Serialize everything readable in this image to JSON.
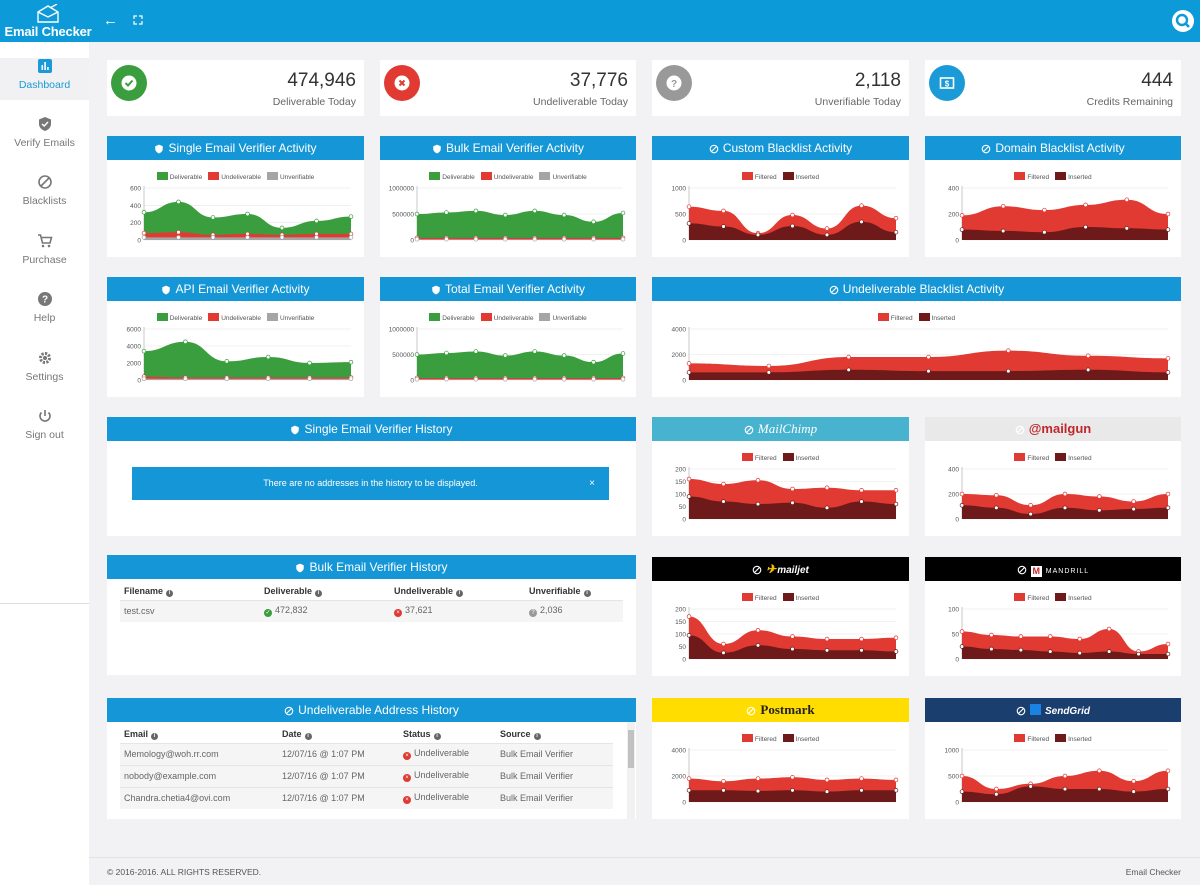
{
  "app": {
    "title": "Email Checker"
  },
  "nav": [
    {
      "label": "Dashboard",
      "icon": "bar-chart-icon"
    },
    {
      "label": "Verify Emails",
      "icon": "shield-icon"
    },
    {
      "label": "Blacklists",
      "icon": "ban-icon"
    },
    {
      "label": "Purchase",
      "icon": "cart-icon"
    },
    {
      "label": "Help",
      "icon": "question-icon"
    },
    {
      "label": "Settings",
      "icon": "gear-icon"
    },
    {
      "label": "Sign out",
      "icon": "power-icon"
    }
  ],
  "stats": [
    {
      "value": "474,946",
      "caption": "Deliverable Today",
      "color": "#3a9e3e"
    },
    {
      "value": "37,776",
      "caption": "Undeliverable Today",
      "color": "#e03a33"
    },
    {
      "value": "2,118",
      "caption": "Unverifiable Today",
      "color": "#999999"
    },
    {
      "value": "444",
      "caption": "Credits Remaining",
      "color": "#1a9ad6"
    }
  ],
  "colors": {
    "deliverable": "#3a9e3e",
    "undeliverable": "#e03a33",
    "unverifiable": "#a5a5a5",
    "filtered": "#e03a33",
    "inserted": "#6e1a1a",
    "header": "#1596d6"
  },
  "legends": {
    "deliverable": "Deliverable",
    "undeliverable": "Undeliverable",
    "unverifiable": "Unverifiable",
    "filtered": "Filtered",
    "inserted": "Inserted"
  },
  "panels": {
    "single": "Single Email Verifier Activity",
    "bulk": "Bulk Email Verifier Activity",
    "custom_bl": "Custom Blacklist Activity",
    "domain_bl": "Domain Blacklist Activity",
    "api": "API Email Verifier Activity",
    "total": "Total Email Verifier Activity",
    "undeliv_bl": "Undeliverable Blacklist Activity",
    "single_hist": "Single Email Verifier History",
    "bulk_hist": "Bulk Email Verifier History",
    "undeliv_hist": "Undeliverable Address History"
  },
  "brands": {
    "mailchimp": "MailChimp",
    "mailgun": "@mailgun",
    "mailjet": "mailjet",
    "mandrill": "MANDRILL",
    "postmark": "Postmark",
    "sendgrid": "SendGrid"
  },
  "single_history": {
    "empty_message": "There are no addresses in the history to be displayed.",
    "close": "×"
  },
  "bulk_history": {
    "columns": [
      "Filename",
      "Deliverable",
      "Undeliverable",
      "Unverifiable"
    ],
    "rows": [
      {
        "filename": "test.csv",
        "deliverable": "472,832",
        "undeliverable": "37,621",
        "unverifiable": "2,036"
      }
    ]
  },
  "undeliverable_history": {
    "columns": [
      "Email",
      "Date",
      "Status",
      "Source"
    ],
    "rows": [
      {
        "email": "Memology@woh.rr.com",
        "date": "12/07/16 @ 1:07 PM",
        "status": "Undeliverable",
        "source": "Bulk Email Verifier"
      },
      {
        "email": "nobody@example.com",
        "date": "12/07/16 @ 1:07 PM",
        "status": "Undeliverable",
        "source": "Bulk Email Verifier"
      },
      {
        "email": "Chandra.chetia4@ovi.com",
        "date": "12/07/16 @ 1:07 PM",
        "status": "Undeliverable",
        "source": "Bulk Email Verifier"
      }
    ]
  },
  "footer": {
    "copyright": "© 2016-2016. ALL RIGHTS RESERVED.",
    "brand": "Email Checker"
  },
  "chart_data": [
    {
      "id": "single",
      "type": "area",
      "title": "Single Email Verifier Activity",
      "legend": [
        "Deliverable",
        "Undeliverable",
        "Unverifiable"
      ],
      "yticks": [
        "600",
        "400",
        "200",
        "0"
      ],
      "ylim": [
        0,
        600
      ],
      "series": [
        {
          "name": "Deliverable",
          "values": [
            320,
            440,
            260,
            300,
            140,
            220,
            270
          ]
        },
        {
          "name": "Undeliverable",
          "values": [
            80,
            90,
            60,
            70,
            60,
            70,
            70
          ]
        },
        {
          "name": "Unverifiable",
          "values": [
            30,
            30,
            30,
            30,
            30,
            30,
            30
          ]
        }
      ]
    },
    {
      "id": "bulk",
      "type": "area",
      "title": "Bulk Email Verifier Activity",
      "legend": [
        "Deliverable",
        "Undeliverable",
        "Unverifiable"
      ],
      "yticks": [
        "1000000",
        "500000",
        "0"
      ],
      "ylim": [
        0,
        1000000
      ],
      "series": [
        {
          "name": "Deliverable",
          "values": [
            500000,
            530000,
            560000,
            480000,
            560000,
            480000,
            350000,
            520000
          ]
        },
        {
          "name": "Undeliverable",
          "values": [
            40000,
            40000,
            40000,
            40000,
            40000,
            40000,
            40000,
            40000
          ]
        },
        {
          "name": "Unverifiable",
          "values": [
            15000,
            15000,
            15000,
            15000,
            15000,
            15000,
            15000,
            15000
          ]
        }
      ]
    },
    {
      "id": "custom",
      "type": "area",
      "title": "Custom Blacklist Activity",
      "legend": [
        "Filtered",
        "Inserted"
      ],
      "yticks": [
        "1000",
        "500",
        "0"
      ],
      "ylim": [
        0,
        1000
      ],
      "series": [
        {
          "name": "Filtered",
          "values": [
            640,
            560,
            130,
            480,
            220,
            660,
            420
          ]
        },
        {
          "name": "Inserted",
          "values": [
            320,
            260,
            100,
            270,
            100,
            350,
            150
          ]
        }
      ]
    },
    {
      "id": "domain",
      "type": "area",
      "title": "Domain Blacklist Activity",
      "legend": [
        "Filtered",
        "Inserted"
      ],
      "yticks": [
        "400",
        "200",
        "0"
      ],
      "ylim": [
        0,
        400
      ],
      "series": [
        {
          "name": "Filtered",
          "values": [
            190,
            260,
            230,
            270,
            310,
            200
          ]
        },
        {
          "name": "Inserted",
          "values": [
            80,
            70,
            60,
            100,
            90,
            80
          ]
        }
      ]
    },
    {
      "id": "api",
      "type": "area",
      "title": "API Email Verifier Activity",
      "legend": [
        "Deliverable",
        "Undeliverable",
        "Unverifiable"
      ],
      "yticks": [
        "6000",
        "4000",
        "2000",
        "0"
      ],
      "ylim": [
        0,
        6000
      ],
      "series": [
        {
          "name": "Deliverable",
          "values": [
            3400,
            4500,
            2200,
            2700,
            2000,
            2100
          ]
        },
        {
          "name": "Undeliverable",
          "values": [
            400,
            300,
            300,
            300,
            300,
            300
          ]
        },
        {
          "name": "Unverifiable",
          "values": [
            150,
            150,
            150,
            150,
            150,
            150
          ]
        }
      ]
    },
    {
      "id": "total",
      "type": "area",
      "title": "Total Email Verifier Activity",
      "legend": [
        "Deliverable",
        "Undeliverable",
        "Unverifiable"
      ],
      "yticks": [
        "1000000",
        "500000",
        "0"
      ],
      "ylim": [
        0,
        1000000
      ],
      "series": [
        {
          "name": "Deliverable",
          "values": [
            500000,
            530000,
            560000,
            480000,
            560000,
            480000,
            350000,
            520000
          ]
        },
        {
          "name": "Undeliverable",
          "values": [
            40000,
            40000,
            40000,
            40000,
            40000,
            40000,
            40000,
            40000
          ]
        },
        {
          "name": "Unverifiable",
          "values": [
            15000,
            15000,
            15000,
            15000,
            15000,
            15000,
            15000,
            15000
          ]
        }
      ]
    },
    {
      "id": "undeliv",
      "type": "area",
      "title": "Undeliverable Blacklist Activity",
      "legend": [
        "Filtered",
        "Inserted"
      ],
      "yticks": [
        "4000",
        "2000",
        "0"
      ],
      "ylim": [
        0,
        4000
      ],
      "series": [
        {
          "name": "Filtered",
          "values": [
            1300,
            1100,
            1800,
            1800,
            2300,
            1900,
            1700
          ]
        },
        {
          "name": "Inserted",
          "values": [
            600,
            600,
            800,
            700,
            700,
            800,
            600
          ]
        }
      ]
    },
    {
      "id": "mailchimp",
      "type": "area",
      "title": "MailChimp",
      "legend": [
        "Filtered",
        "Inserted"
      ],
      "yticks": [
        "200",
        "150",
        "100",
        "50",
        "0"
      ],
      "ylim": [
        0,
        200
      ],
      "series": [
        {
          "name": "Filtered",
          "values": [
            160,
            140,
            155,
            120,
            125,
            115,
            115
          ]
        },
        {
          "name": "Inserted",
          "values": [
            90,
            70,
            60,
            65,
            45,
            70,
            60
          ]
        }
      ]
    },
    {
      "id": "mailgun",
      "type": "area",
      "title": "@mailgun",
      "legend": [
        "Filtered",
        "Inserted"
      ],
      "yticks": [
        "400",
        "200",
        "0"
      ],
      "ylim": [
        0,
        400
      ],
      "series": [
        {
          "name": "Filtered",
          "values": [
            200,
            190,
            110,
            200,
            180,
            140,
            200
          ]
        },
        {
          "name": "Inserted",
          "values": [
            110,
            90,
            40,
            90,
            70,
            80,
            90
          ]
        }
      ]
    },
    {
      "id": "mailjet",
      "type": "area",
      "title": "mailjet",
      "legend": [
        "Filtered",
        "Inserted"
      ],
      "yticks": [
        "200",
        "150",
        "100",
        "50",
        "0"
      ],
      "ylim": [
        0,
        200
      ],
      "series": [
        {
          "name": "Filtered",
          "values": [
            170,
            60,
            115,
            90,
            80,
            80,
            85
          ]
        },
        {
          "name": "Inserted",
          "values": [
            95,
            25,
            55,
            40,
            35,
            35,
            30
          ]
        }
      ]
    },
    {
      "id": "mandrill",
      "type": "area",
      "title": "MANDRILL",
      "legend": [
        "Filtered",
        "Inserted"
      ],
      "yticks": [
        "100",
        "50",
        "0"
      ],
      "ylim": [
        0,
        100
      ],
      "series": [
        {
          "name": "Filtered",
          "values": [
            55,
            48,
            45,
            45,
            40,
            60,
            15,
            30
          ]
        },
        {
          "name": "Inserted",
          "values": [
            25,
            20,
            18,
            15,
            12,
            15,
            10,
            10
          ]
        }
      ]
    },
    {
      "id": "postmark",
      "type": "area",
      "title": "Postmark",
      "legend": [
        "Filtered",
        "Inserted"
      ],
      "yticks": [
        "4000",
        "2000",
        "0"
      ],
      "ylim": [
        0,
        4000
      ],
      "series": [
        {
          "name": "Filtered",
          "values": [
            1800,
            1600,
            1800,
            1900,
            1700,
            1800,
            1700
          ]
        },
        {
          "name": "Inserted",
          "values": [
            900,
            900,
            850,
            900,
            800,
            900,
            900
          ]
        }
      ]
    },
    {
      "id": "sendgrid",
      "type": "area",
      "title": "SendGrid",
      "legend": [
        "Filtered",
        "Inserted"
      ],
      "yticks": [
        "1000",
        "500",
        "0"
      ],
      "ylim": [
        0,
        1000
      ],
      "series": [
        {
          "name": "Filtered",
          "values": [
            500,
            250,
            350,
            500,
            600,
            400,
            600
          ]
        },
        {
          "name": "Inserted",
          "values": [
            200,
            150,
            300,
            250,
            250,
            200,
            250
          ]
        }
      ]
    }
  ]
}
